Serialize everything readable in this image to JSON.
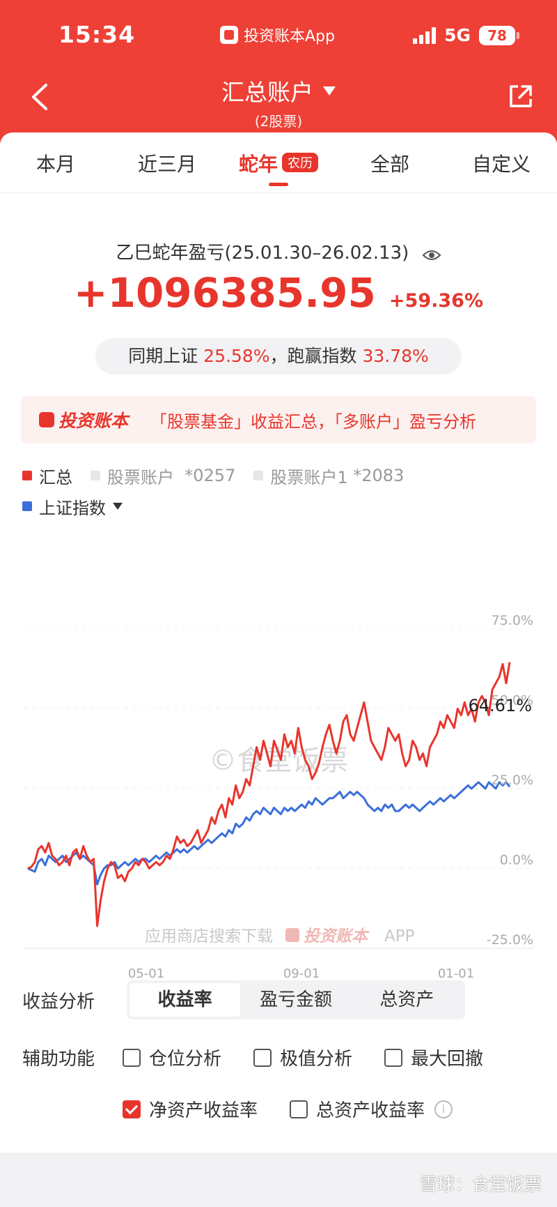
{
  "status_bar": {
    "time": "15:34",
    "app_name": "投资账本App",
    "network": "5G",
    "battery": "78"
  },
  "header": {
    "title": "汇总账户",
    "subtitle": "(2股票)",
    "back_icon": "chevron-left-icon",
    "share_icon": "share-icon"
  },
  "tabs": [
    {
      "label": "本月",
      "active": false
    },
    {
      "label": "近三月",
      "active": false
    },
    {
      "label": "蛇年",
      "badge": "农历",
      "active": true
    },
    {
      "label": "全部",
      "active": false
    },
    {
      "label": "自定义",
      "active": false
    }
  ],
  "summary": {
    "period_title": "乙巳蛇年盈亏(25.01.30–26.02.13)",
    "profit": "+1096385.95",
    "profit_rate": "+59.36%",
    "compare_prefix": "同期上证",
    "index_rate": "25.58%",
    "compare_mid": "，跑赢指数",
    "beat_rate": "33.78%"
  },
  "promo": {
    "brand": "投资账本",
    "text": "「股票基金」收益汇总，「多账户」盈亏分析"
  },
  "legend": [
    {
      "label": "汇总",
      "color": "#e8352c",
      "active": true
    },
    {
      "label": "股票账户",
      "suffix": "*0257",
      "color": "#e6e6e6",
      "active": false
    },
    {
      "label": "股票账户1",
      "suffix": "*2083",
      "color": "#e6e6e6",
      "active": false
    },
    {
      "label": "上证指数",
      "color": "#3a6fd8",
      "active": true,
      "dropdown": true
    }
  ],
  "chart_data": {
    "type": "line",
    "y_ticks": [
      "75.0%",
      "50.0%",
      "25.0%",
      "0.0%",
      "-25.0%"
    ],
    "x_ticks": [
      "05-01",
      "09-01",
      "01-01"
    ],
    "ylim": [
      -25,
      75
    ],
    "y_unit": "%",
    "last_value_label": "64.61%",
    "watermark": "©食堂饭票",
    "download_hint": "应用商店搜索下载",
    "download_brand": "投资账本",
    "download_app": "APP",
    "series": [
      {
        "name": "汇总",
        "color": "#e8352c",
        "x": [
          0,
          1,
          2,
          3,
          4,
          5,
          6,
          7,
          8,
          9,
          10,
          11,
          12,
          13,
          14,
          15,
          16,
          17,
          18,
          19,
          20,
          21,
          22,
          23,
          24,
          25,
          26,
          27,
          28,
          29,
          30,
          31,
          32,
          33,
          34,
          35,
          36,
          37,
          38,
          39,
          40,
          41,
          42,
          43,
          44,
          45,
          46,
          47,
          48,
          49,
          50,
          51,
          52,
          53,
          54,
          55,
          56,
          57,
          58,
          59,
          60,
          61,
          62,
          63,
          64,
          65,
          66,
          67,
          68,
          69,
          70,
          71,
          72,
          73,
          74,
          75,
          76,
          77,
          78,
          79,
          80,
          81,
          82,
          83,
          84,
          85,
          86,
          87,
          88,
          89,
          90,
          91,
          92,
          93,
          94,
          95,
          96,
          97,
          98,
          99,
          100,
          101,
          102,
          103,
          104,
          105,
          106,
          107,
          108,
          109,
          110,
          111,
          112,
          113,
          114,
          115,
          116,
          117,
          118,
          119,
          120,
          121,
          122,
          123,
          124,
          125,
          126,
          127,
          128,
          129,
          130,
          131,
          132,
          133,
          134,
          135,
          136,
          137,
          138,
          139
        ],
        "values": [
          0,
          0.5,
          2,
          6,
          7,
          5,
          8,
          4,
          3,
          1,
          2,
          4,
          1,
          5,
          6,
          3,
          7,
          4,
          2,
          3,
          -18,
          -10,
          -4,
          0,
          2,
          1,
          -3,
          -2,
          -4,
          -1,
          0,
          2,
          1,
          3,
          2,
          0,
          1,
          2,
          1,
          2,
          4,
          3,
          6,
          10,
          8,
          9,
          7,
          8,
          10,
          12,
          8,
          10,
          12,
          16,
          14,
          18,
          20,
          16,
          22,
          20,
          26,
          22,
          24,
          28,
          26,
          32,
          38,
          34,
          40,
          36,
          32,
          40,
          37,
          34,
          42,
          38,
          40,
          36,
          44,
          38,
          34,
          32,
          28,
          30,
          33,
          38,
          42,
          45,
          40,
          36,
          40,
          46,
          48,
          42,
          40,
          44,
          48,
          52,
          46,
          40,
          38,
          36,
          34,
          38,
          44,
          42,
          40,
          42,
          36,
          32,
          34,
          40,
          38,
          34,
          36,
          32,
          38,
          40,
          42,
          46,
          44,
          48,
          46,
          44,
          50,
          48,
          52,
          48,
          50,
          46,
          52,
          54,
          52,
          48,
          56,
          58,
          60,
          64,
          58,
          64.61
        ]
      },
      {
        "name": "上证指数",
        "color": "#3a6fd8",
        "x": [
          0,
          1,
          2,
          3,
          4,
          5,
          6,
          7,
          8,
          9,
          10,
          11,
          12,
          13,
          14,
          15,
          16,
          17,
          18,
          19,
          20,
          21,
          22,
          23,
          24,
          25,
          26,
          27,
          28,
          29,
          30,
          31,
          32,
          33,
          34,
          35,
          36,
          37,
          38,
          39,
          40,
          41,
          42,
          43,
          44,
          45,
          46,
          47,
          48,
          49,
          50,
          51,
          52,
          53,
          54,
          55,
          56,
          57,
          58,
          59,
          60,
          61,
          62,
          63,
          64,
          65,
          66,
          67,
          68,
          69,
          70,
          71,
          72,
          73,
          74,
          75,
          76,
          77,
          78,
          79,
          80,
          81,
          82,
          83,
          84,
          85,
          86,
          87,
          88,
          89,
          90,
          91,
          92,
          93,
          94,
          95,
          96,
          97,
          98,
          99,
          100,
          101,
          102,
          103,
          104,
          105,
          106,
          107,
          108,
          109,
          110,
          111,
          112,
          113,
          114,
          115,
          116,
          117,
          118,
          119,
          120,
          121,
          122,
          123,
          124,
          125,
          126,
          127,
          128,
          129,
          130,
          131,
          132,
          133,
          134,
          135,
          136,
          137,
          138,
          139
        ],
        "values": [
          0,
          -0.5,
          -1,
          2,
          3,
          1,
          4,
          3,
          2,
          3,
          4,
          2,
          3,
          4,
          5,
          3,
          4,
          3,
          2,
          1,
          -5,
          -2,
          0,
          1,
          1,
          2,
          0,
          1,
          2,
          1,
          2,
          3,
          2,
          3,
          3,
          2,
          3,
          4,
          3,
          4,
          5,
          4,
          5,
          6,
          5,
          6,
          5,
          6,
          7,
          6,
          7,
          8,
          9,
          8,
          9,
          10,
          11,
          10,
          12,
          11,
          14,
          13,
          14,
          16,
          15,
          17,
          18,
          17,
          19,
          18,
          17,
          19,
          18,
          17,
          19,
          18,
          19,
          18,
          19,
          20,
          19,
          21,
          20,
          22,
          21,
          20,
          21,
          22,
          22,
          23,
          24,
          22,
          23,
          24,
          23,
          24,
          23,
          22,
          20,
          19,
          18,
          19,
          18,
          20,
          19,
          20,
          18,
          18,
          19,
          20,
          19,
          20,
          19,
          18,
          19,
          20,
          21,
          20,
          21,
          22,
          21,
          22,
          23,
          22,
          23,
          24,
          25,
          26,
          25,
          26,
          27,
          26,
          25,
          27,
          26,
          25,
          27,
          26,
          27,
          25.58
        ]
      }
    ]
  },
  "analysis": {
    "label": "收益分析",
    "options": [
      {
        "label": "收益率",
        "active": true
      },
      {
        "label": "盈亏金额",
        "active": false
      },
      {
        "label": "总资产",
        "active": false
      }
    ]
  },
  "aux": {
    "label": "辅助功能",
    "options": [
      {
        "label": "仓位分析",
        "checked": false
      },
      {
        "label": "极值分析",
        "checked": false
      },
      {
        "label": "最大回撤",
        "checked": false
      },
      {
        "label": "净资产收益率",
        "checked": true
      },
      {
        "label": "总资产收益率",
        "checked": false
      }
    ]
  },
  "footer": {
    "watermark": "雪球：食堂饭票"
  }
}
